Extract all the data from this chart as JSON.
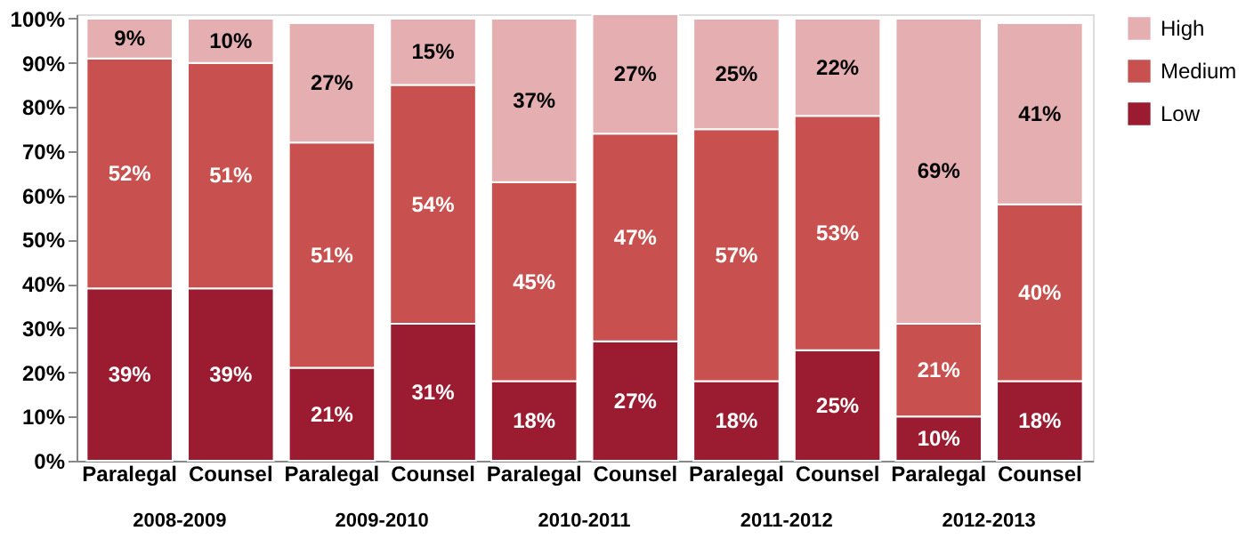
{
  "chart_data": {
    "type": "bar",
    "stacked": true,
    "legend": "right",
    "grid": false,
    "categories": [
      "Paralegal",
      "Counsel",
      "Paralegal",
      "Counsel",
      "Paralegal",
      "Counsel",
      "Paralegal",
      "Counsel",
      "Paralegal",
      "Counsel"
    ],
    "annotations": [
      "2008-2009",
      "2009-2010",
      "2010-2011",
      "2011-2012",
      "2012-2013"
    ],
    "ylim": [
      0,
      101
    ],
    "yticks": [
      {
        "value": 0,
        "label": "0%"
      },
      {
        "value": 10,
        "label": "10%"
      },
      {
        "value": 20,
        "label": "20%"
      },
      {
        "value": 30,
        "label": "30%"
      },
      {
        "value": 40,
        "label": "40%"
      },
      {
        "value": 50,
        "label": "50%"
      },
      {
        "value": 60,
        "label": "60%"
      },
      {
        "value": 70,
        "label": "70%"
      },
      {
        "value": 80,
        "label": "80%"
      },
      {
        "value": 90,
        "label": "90%"
      },
      {
        "value": 100,
        "label": "100%"
      }
    ],
    "series": [
      {
        "name": "Low",
        "color": "#9b1c31",
        "values": [
          39,
          39,
          21,
          31,
          18,
          27,
          18,
          25,
          10,
          18
        ],
        "value_labels": [
          "39%",
          "39%",
          "21%",
          "31%",
          "18%",
          "27%",
          "18%",
          "25%",
          "10%",
          "18%"
        ]
      },
      {
        "name": "Medium",
        "color": "#c8504e",
        "values": [
          52,
          51,
          51,
          54,
          45,
          47,
          57,
          53,
          21,
          40
        ],
        "value_labels": [
          "52%",
          "51%",
          "51%",
          "54%",
          "45%",
          "47%",
          "57%",
          "53%",
          "21%",
          "40%"
        ]
      },
      {
        "name": "High",
        "color": "#e5aeb1",
        "values": [
          9,
          10,
          27,
          15,
          37,
          27,
          25,
          22,
          69,
          41
        ],
        "value_labels": [
          "9%",
          "10%",
          "27%",
          "15%",
          "37%",
          "27%",
          "25%",
          "22%",
          "69%",
          "41%"
        ]
      }
    ]
  }
}
